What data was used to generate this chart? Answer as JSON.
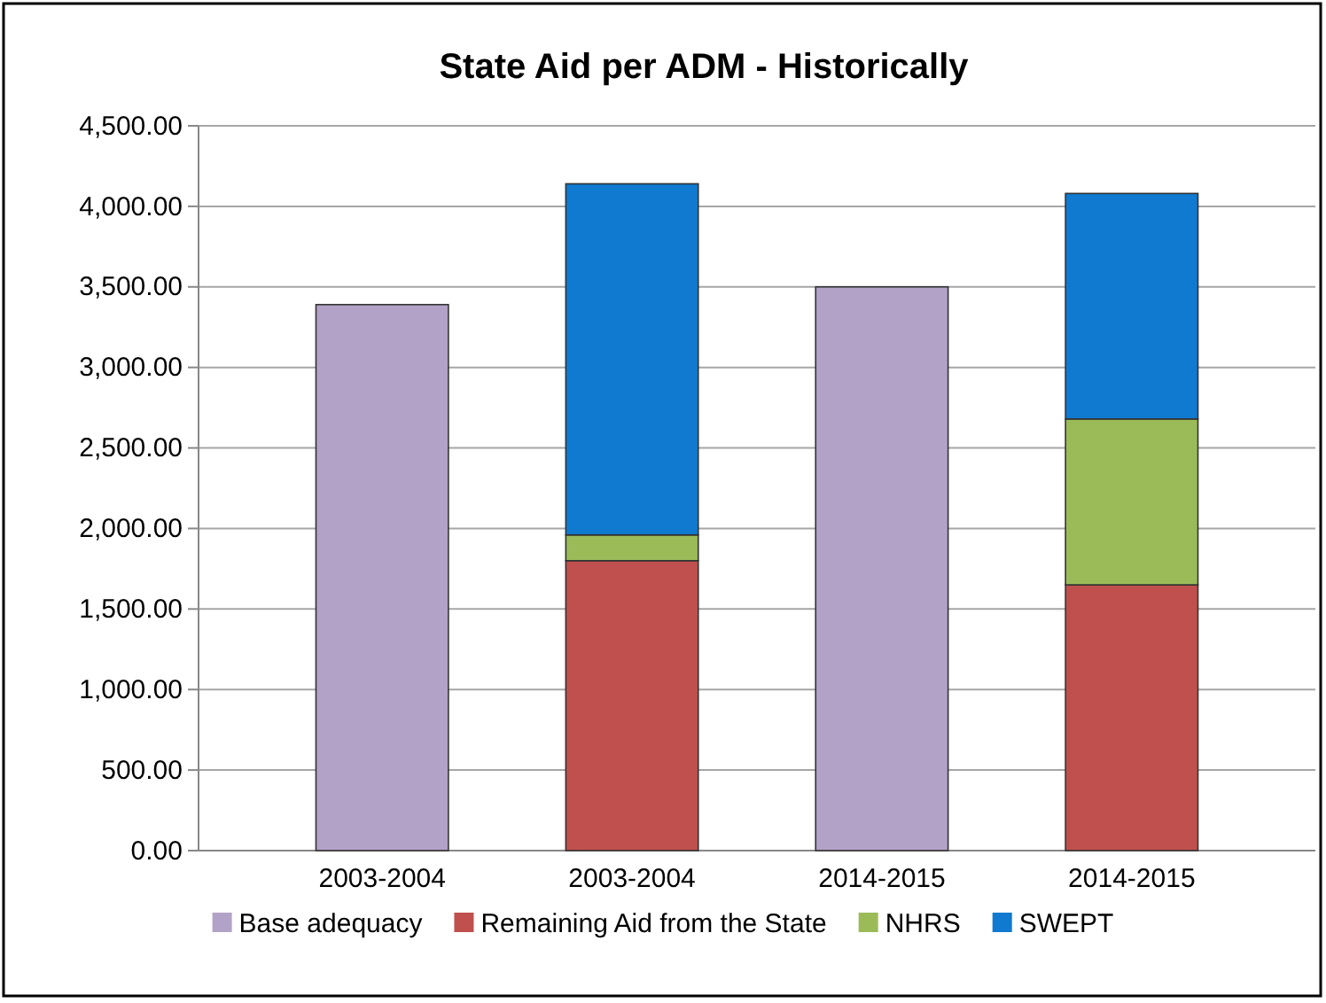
{
  "chart_data": {
    "type": "bar",
    "title": "State Aid per ADM - Historically",
    "categories": [
      "2003-2004",
      "2003-2004",
      "2014-2015",
      "2014-2015"
    ],
    "stacked": true,
    "series": [
      {
        "name": "Base adequacy",
        "color": "#b3a2c7",
        "values": [
          3390,
          null,
          3500,
          null
        ]
      },
      {
        "name": "Remaining Aid from the State",
        "color": "#c0504d",
        "values": [
          null,
          1800,
          null,
          1650
        ]
      },
      {
        "name": "NHRS",
        "color": "#9bbb59",
        "values": [
          null,
          160,
          null,
          1030
        ]
      },
      {
        "name": "SWEPT",
        "color": "#0f7ad0",
        "values": [
          null,
          2180,
          null,
          1400
        ]
      }
    ],
    "ylim": [
      0,
      4500
    ],
    "yticks": [
      {
        "value": 0,
        "label": "0.00"
      },
      {
        "value": 500,
        "label": "500.00"
      },
      {
        "value": 1000,
        "label": "1,000.00"
      },
      {
        "value": 1500,
        "label": "1,500.00"
      },
      {
        "value": 2000,
        "label": "2,000.00"
      },
      {
        "value": 2500,
        "label": "2,500.00"
      },
      {
        "value": 3000,
        "label": "3,000.00"
      },
      {
        "value": 3500,
        "label": "3,500.00"
      },
      {
        "value": 4000,
        "label": "4,000.00"
      },
      {
        "value": 4500,
        "label": "4,500.00"
      }
    ],
    "grid": "y",
    "legend": "bottom"
  }
}
